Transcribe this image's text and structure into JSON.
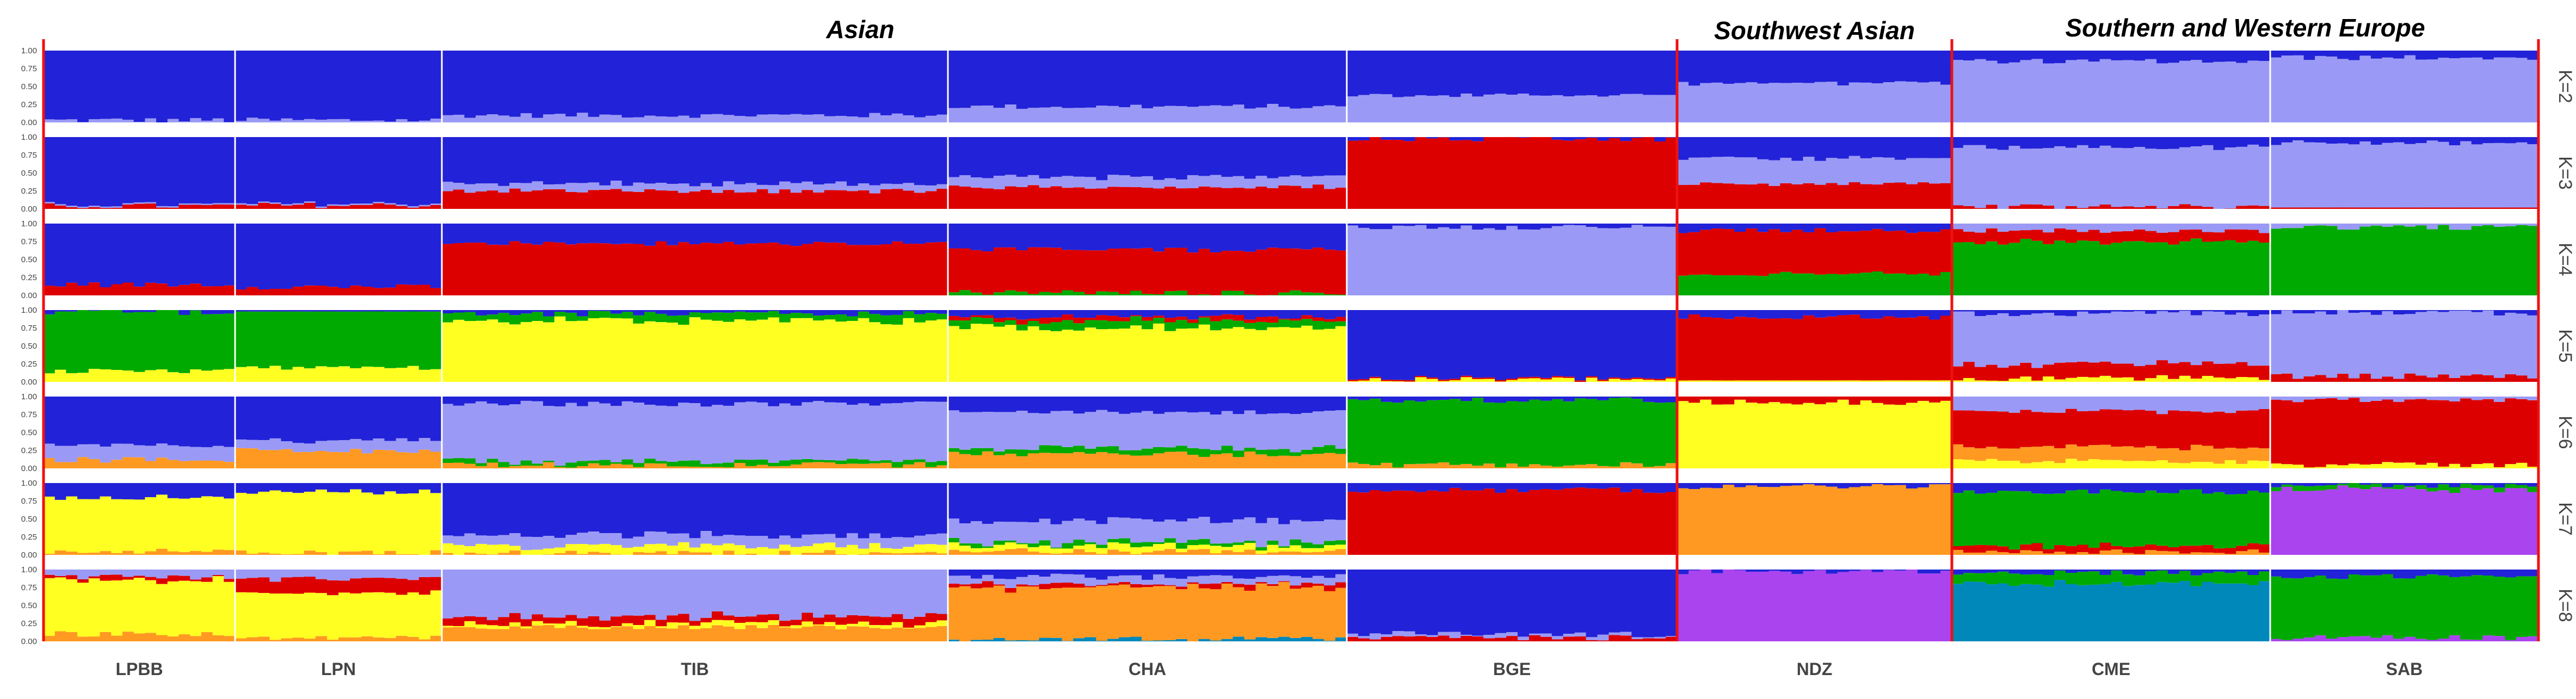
{
  "chart_data": {
    "type": "bar",
    "stacked": true,
    "description_units": "ancestry proportion per individual",
    "y_ticks": [
      "1.00",
      "0.75",
      "0.50",
      "0.25",
      "0.00"
    ],
    "ylim": [
      0,
      1
    ],
    "regions": [
      {
        "label": "Asian",
        "populations": [
          "LPBB",
          "LPN",
          "TIB",
          "CHA",
          "BGE"
        ]
      },
      {
        "label": "Southwest Asian",
        "populations": [
          "NDZ"
        ]
      },
      {
        "label": "Southern and Western Europe",
        "populations": [
          "CME",
          "SAB"
        ]
      }
    ],
    "populations": [
      {
        "name": "LPBB",
        "n": 17
      },
      {
        "name": "LPN",
        "n": 18
      },
      {
        "name": "TIB",
        "n": 45
      },
      {
        "name": "CHA",
        "n": 35
      },
      {
        "name": "BGE",
        "n": 29
      },
      {
        "name": "NDZ",
        "n": 24
      },
      {
        "name": "CME",
        "n": 28
      },
      {
        "name": "SAB",
        "n": 24
      }
    ],
    "colors": {
      "blue": "#2222d8",
      "lavender": "#9a9af6",
      "red": "#dd0000",
      "green": "#00aa00",
      "yellow": "#ffff22",
      "orange": "#ff9922",
      "purple": "#aa44ee",
      "teal": "#0088bb"
    },
    "rows": [
      {
        "K": "K=2",
        "ancestry": {
          "LPBB": [
            {
              "color": "lavender",
              "value": 0.03
            },
            {
              "color": "blue",
              "value": 0.97
            }
          ],
          "LPN": [
            {
              "color": "lavender",
              "value": 0.03
            },
            {
              "color": "blue",
              "value": 0.97
            }
          ],
          "TIB": [
            {
              "color": "lavender",
              "value": 0.1
            },
            {
              "color": "blue",
              "value": 0.9
            }
          ],
          "CHA": [
            {
              "color": "lavender",
              "value": 0.22
            },
            {
              "color": "blue",
              "value": 0.78
            }
          ],
          "BGE": [
            {
              "color": "lavender",
              "value": 0.38
            },
            {
              "color": "blue",
              "value": 0.62
            }
          ],
          "NDZ": [
            {
              "color": "lavender",
              "value": 0.55
            },
            {
              "color": "blue",
              "value": 0.45
            }
          ],
          "CME": [
            {
              "color": "lavender",
              "value": 0.85
            },
            {
              "color": "blue",
              "value": 0.15
            }
          ],
          "SAB": [
            {
              "color": "lavender",
              "value": 0.9
            },
            {
              "color": "blue",
              "value": 0.1
            }
          ]
        }
      },
      {
        "K": "K=3",
        "ancestry": {
          "LPBB": [
            {
              "color": "red",
              "value": 0.04
            },
            {
              "color": "lavender",
              "value": 0.02
            },
            {
              "color": "blue",
              "value": 0.94
            }
          ],
          "LPN": [
            {
              "color": "red",
              "value": 0.05
            },
            {
              "color": "lavender",
              "value": 0.02
            },
            {
              "color": "blue",
              "value": 0.93
            }
          ],
          "TIB": [
            {
              "color": "red",
              "value": 0.25
            },
            {
              "color": "lavender",
              "value": 0.1
            },
            {
              "color": "blue",
              "value": 0.65
            }
          ],
          "CHA": [
            {
              "color": "red",
              "value": 0.3
            },
            {
              "color": "lavender",
              "value": 0.15
            },
            {
              "color": "blue",
              "value": 0.55
            }
          ],
          "BGE": [
            {
              "color": "red",
              "value": 0.97
            },
            {
              "color": "blue",
              "value": 0.03
            }
          ],
          "NDZ": [
            {
              "color": "red",
              "value": 0.35
            },
            {
              "color": "lavender",
              "value": 0.35
            },
            {
              "color": "blue",
              "value": 0.3
            }
          ],
          "CME": [
            {
              "color": "red",
              "value": 0.03
            },
            {
              "color": "lavender",
              "value": 0.83
            },
            {
              "color": "blue",
              "value": 0.14
            }
          ],
          "SAB": [
            {
              "color": "red",
              "value": 0.02
            },
            {
              "color": "lavender",
              "value": 0.9
            },
            {
              "color": "blue",
              "value": 0.08
            }
          ]
        }
      },
      {
        "K": "K=4",
        "ancestry": {
          "LPBB": [
            {
              "color": "red",
              "value": 0.15
            },
            {
              "color": "blue",
              "value": 0.85
            }
          ],
          "LPN": [
            {
              "color": "red",
              "value": 0.12
            },
            {
              "color": "blue",
              "value": 0.88
            }
          ],
          "TIB": [
            {
              "color": "red",
              "value": 0.72
            },
            {
              "color": "blue",
              "value": 0.28
            }
          ],
          "CHA": [
            {
              "color": "green",
              "value": 0.04
            },
            {
              "color": "red",
              "value": 0.6
            },
            {
              "color": "blue",
              "value": 0.36
            }
          ],
          "BGE": [
            {
              "color": "lavender",
              "value": 0.95
            },
            {
              "color": "blue",
              "value": 0.05
            }
          ],
          "NDZ": [
            {
              "color": "green",
              "value": 0.3
            },
            {
              "color": "red",
              "value": 0.6
            },
            {
              "color": "blue",
              "value": 0.1
            }
          ],
          "CME": [
            {
              "color": "green",
              "value": 0.75
            },
            {
              "color": "red",
              "value": 0.15
            },
            {
              "color": "lavender",
              "value": 0.1
            }
          ],
          "SAB": [
            {
              "color": "green",
              "value": 0.95
            },
            {
              "color": "lavender",
              "value": 0.05
            }
          ]
        }
      },
      {
        "K": "K=5",
        "ancestry": {
          "LPBB": [
            {
              "color": "yellow",
              "value": 0.15
            },
            {
              "color": "green",
              "value": 0.82
            },
            {
              "color": "blue",
              "value": 0.03
            }
          ],
          "LPN": [
            {
              "color": "yellow",
              "value": 0.2
            },
            {
              "color": "green",
              "value": 0.78
            },
            {
              "color": "blue",
              "value": 0.02
            }
          ],
          "TIB": [
            {
              "color": "yellow",
              "value": 0.85
            },
            {
              "color": "green",
              "value": 0.1
            },
            {
              "color": "blue",
              "value": 0.05
            }
          ],
          "CHA": [
            {
              "color": "yellow",
              "value": 0.75
            },
            {
              "color": "green",
              "value": 0.1
            },
            {
              "color": "red",
              "value": 0.05
            },
            {
              "color": "blue",
              "value": 0.1
            }
          ],
          "BGE": [
            {
              "color": "yellow",
              "value": 0.03
            },
            {
              "color": "red",
              "value": 0.02
            },
            {
              "color": "blue",
              "value": 0.95
            }
          ],
          "NDZ": [
            {
              "color": "yellow",
              "value": 0.02
            },
            {
              "color": "red",
              "value": 0.88
            },
            {
              "color": "blue",
              "value": 0.1
            }
          ],
          "CME": [
            {
              "color": "yellow",
              "value": 0.05
            },
            {
              "color": "red",
              "value": 0.2
            },
            {
              "color": "lavender",
              "value": 0.7
            },
            {
              "color": "blue",
              "value": 0.05
            }
          ],
          "SAB": [
            {
              "color": "red",
              "value": 0.08
            },
            {
              "color": "lavender",
              "value": 0.88
            },
            {
              "color": "blue",
              "value": 0.04
            }
          ]
        }
      },
      {
        "K": "K=6",
        "ancestry": {
          "LPBB": [
            {
              "color": "orange",
              "value": 0.12
            },
            {
              "color": "lavender",
              "value": 0.2
            },
            {
              "color": "blue",
              "value": 0.68
            }
          ],
          "LPN": [
            {
              "color": "orange",
              "value": 0.25
            },
            {
              "color": "lavender",
              "value": 0.15
            },
            {
              "color": "blue",
              "value": 0.6
            }
          ],
          "TIB": [
            {
              "color": "orange",
              "value": 0.05
            },
            {
              "color": "green",
              "value": 0.05
            },
            {
              "color": "lavender",
              "value": 0.8
            },
            {
              "color": "blue",
              "value": 0.1
            }
          ],
          "CHA": [
            {
              "color": "orange",
              "value": 0.2
            },
            {
              "color": "green",
              "value": 0.08
            },
            {
              "color": "lavender",
              "value": 0.5
            },
            {
              "color": "blue",
              "value": 0.22
            }
          ],
          "BGE": [
            {
              "color": "orange",
              "value": 0.05
            },
            {
              "color": "green",
              "value": 0.9
            },
            {
              "color": "blue",
              "value": 0.05
            }
          ],
          "NDZ": [
            {
              "color": "yellow",
              "value": 0.92
            },
            {
              "color": "red",
              "value": 0.08
            }
          ],
          "CME": [
            {
              "color": "yellow",
              "value": 0.1
            },
            {
              "color": "orange",
              "value": 0.2
            },
            {
              "color": "red",
              "value": 0.5
            },
            {
              "color": "lavender",
              "value": 0.2
            }
          ],
          "SAB": [
            {
              "color": "yellow",
              "value": 0.05
            },
            {
              "color": "red",
              "value": 0.9
            },
            {
              "color": "lavender",
              "value": 0.05
            }
          ]
        }
      },
      {
        "K": "K=7",
        "ancestry": {
          "LPBB": [
            {
              "color": "orange",
              "value": 0.05
            },
            {
              "color": "yellow",
              "value": 0.75
            },
            {
              "color": "blue",
              "value": 0.2
            }
          ],
          "LPN": [
            {
              "color": "orange",
              "value": 0.03
            },
            {
              "color": "yellow",
              "value": 0.85
            },
            {
              "color": "blue",
              "value": 0.12
            }
          ],
          "TIB": [
            {
              "color": "orange",
              "value": 0.03
            },
            {
              "color": "yellow",
              "value": 0.1
            },
            {
              "color": "lavender",
              "value": 0.15
            },
            {
              "color": "blue",
              "value": 0.72
            }
          ],
          "CHA": [
            {
              "color": "orange",
              "value": 0.05
            },
            {
              "color": "yellow",
              "value": 0.08
            },
            {
              "color": "green",
              "value": 0.05
            },
            {
              "color": "lavender",
              "value": 0.3
            },
            {
              "color": "blue",
              "value": 0.52
            }
          ],
          "BGE": [
            {
              "color": "red",
              "value": 0.9
            },
            {
              "color": "blue",
              "value": 0.1
            }
          ],
          "NDZ": [
            {
              "color": "orange",
              "value": 0.95
            },
            {
              "color": "blue",
              "value": 0.05
            }
          ],
          "CME": [
            {
              "color": "orange",
              "value": 0.05
            },
            {
              "color": "red",
              "value": 0.08
            },
            {
              "color": "green",
              "value": 0.75
            },
            {
              "color": "blue",
              "value": 0.12
            }
          ],
          "SAB": [
            {
              "color": "purple",
              "value": 0.92
            },
            {
              "color": "green",
              "value": 0.05
            },
            {
              "color": "blue",
              "value": 0.03
            }
          ]
        }
      },
      {
        "K": "K=8",
        "ancestry": {
          "LPBB": [
            {
              "color": "orange",
              "value": 0.1
            },
            {
              "color": "yellow",
              "value": 0.75
            },
            {
              "color": "red",
              "value": 0.05
            },
            {
              "color": "lavender",
              "value": 0.1
            }
          ],
          "LPN": [
            {
              "color": "orange",
              "value": 0.05
            },
            {
              "color": "yellow",
              "value": 0.62
            },
            {
              "color": "red",
              "value": 0.2
            },
            {
              "color": "lavender",
              "value": 0.13
            }
          ],
          "TIB": [
            {
              "color": "orange",
              "value": 0.2
            },
            {
              "color": "yellow",
              "value": 0.05
            },
            {
              "color": "red",
              "value": 0.1
            },
            {
              "color": "lavender",
              "value": 0.65
            }
          ],
          "CHA": [
            {
              "color": "teal",
              "value": 0.03
            },
            {
              "color": "orange",
              "value": 0.72
            },
            {
              "color": "red",
              "value": 0.05
            },
            {
              "color": "lavender",
              "value": 0.1
            },
            {
              "color": "blue",
              "value": 0.1
            }
          ],
          "BGE": [
            {
              "color": "red",
              "value": 0.05
            },
            {
              "color": "lavender",
              "value": 0.05
            },
            {
              "color": "blue",
              "value": 0.9
            }
          ],
          "NDZ": [
            {
              "color": "purple",
              "value": 0.97
            },
            {
              "color": "blue",
              "value": 0.03
            }
          ],
          "CME": [
            {
              "color": "teal",
              "value": 0.8
            },
            {
              "color": "green",
              "value": 0.15
            },
            {
              "color": "blue",
              "value": 0.05
            }
          ],
          "SAB": [
            {
              "color": "purple",
              "value": 0.05
            },
            {
              "color": "green",
              "value": 0.85
            },
            {
              "color": "blue",
              "value": 0.1
            }
          ]
        }
      }
    ]
  }
}
